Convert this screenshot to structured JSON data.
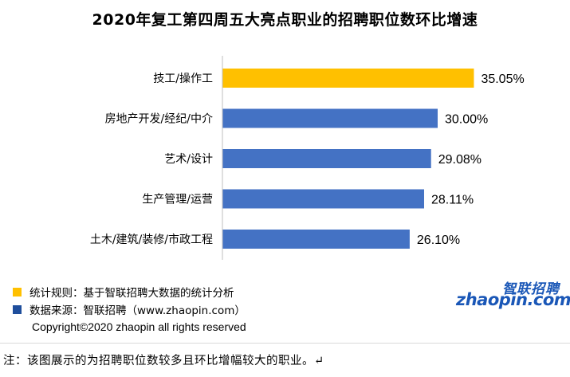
{
  "chart_data": {
    "type": "bar",
    "orientation": "horizontal",
    "title": "2020年复工第四周五大亮点职业的招聘职位数环比增速",
    "categories": [
      "技工/操作工",
      "房地产开发/经纪/中介",
      "艺术/设计",
      "生产管理/运营",
      "土木/建筑/装修/市政工程"
    ],
    "values": [
      35.05,
      30.0,
      29.08,
      28.11,
      26.1
    ],
    "value_labels": [
      "35.05%",
      "30.00%",
      "29.08%",
      "28.11%",
      "26.10%"
    ],
    "bar_colors": [
      "#FFC000",
      "#4472C4",
      "#4472C4",
      "#4472C4",
      "#4472C4"
    ],
    "unit": "%",
    "xlim": [
      0,
      40
    ],
    "grid": false,
    "legend": "none"
  },
  "legend_notes": [
    {
      "text": "统计规则：基于智联招聘大数据的统计分析",
      "color": "#FFC000"
    },
    {
      "text": "数据来源：智联招聘（www.zhaopin.com）",
      "color": "#1F4E9C"
    }
  ],
  "copyright": "Copyright©2020 zhaopin all rights reserved",
  "logo": {
    "cn": "智联招聘",
    "en": "zhaopin.com"
  },
  "note": "注：该图展示的为招聘职位数较多且环比增幅较大的职业。↵",
  "colors": {
    "highlight": "#FFC000",
    "bar": "#4472C4",
    "axis": "#BFBFBF",
    "logo": "#1A57B7"
  }
}
